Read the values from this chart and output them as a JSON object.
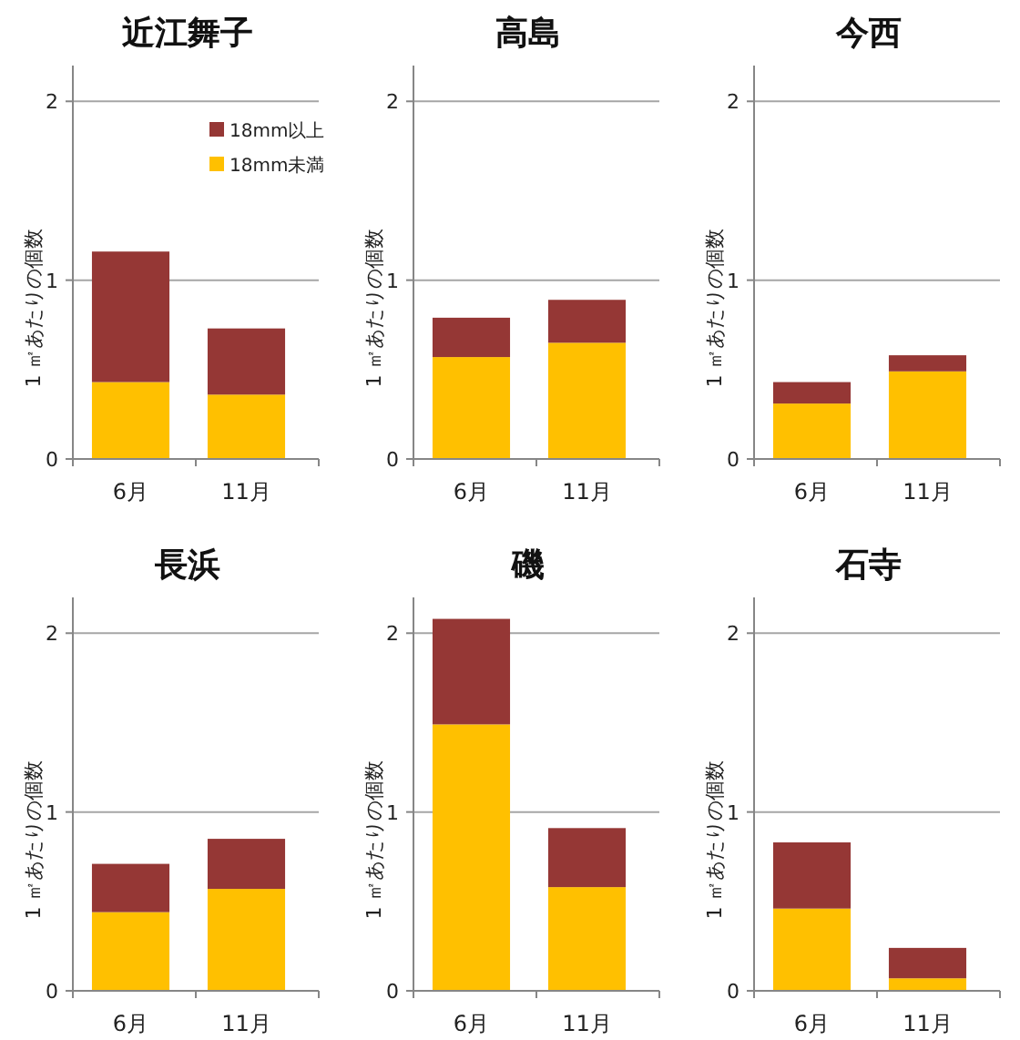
{
  "chart_data": [
    {
      "type": "bar",
      "title": "近江舞子",
      "ylabel": "1 ㎡あたりの個数",
      "categories": [
        "6月",
        "11月"
      ],
      "stacked": true,
      "ylim": [
        0,
        2.2
      ],
      "yticks": [
        0,
        1,
        2
      ],
      "grid": "y",
      "legend": "top right",
      "series": [
        {
          "name": "18mm未満",
          "color": "#ffc000",
          "values": [
            0.43,
            0.36
          ]
        },
        {
          "name": "18mm以上",
          "color": "#953735",
          "values": [
            0.73,
            0.37
          ]
        }
      ]
    },
    {
      "type": "bar",
      "title": "高島",
      "ylabel": "1 ㎡あたりの個数",
      "categories": [
        "6月",
        "11月"
      ],
      "stacked": true,
      "ylim": [
        0,
        2.2
      ],
      "yticks": [
        0,
        1,
        2
      ],
      "grid": "y",
      "series": [
        {
          "color": "#ffc000",
          "values": [
            0.57,
            0.65
          ]
        },
        {
          "color": "#953735",
          "values": [
            0.22,
            0.24
          ]
        }
      ]
    },
    {
      "type": "bar",
      "title": "今西",
      "ylabel": "1 ㎡あたりの個数",
      "categories": [
        "6月",
        "11月"
      ],
      "stacked": true,
      "ylim": [
        0,
        2.2
      ],
      "yticks": [
        0,
        1,
        2
      ],
      "grid": "y",
      "series": [
        {
          "color": "#ffc000",
          "values": [
            0.31,
            0.49
          ]
        },
        {
          "color": "#953735",
          "values": [
            0.12,
            0.09
          ]
        }
      ]
    },
    {
      "type": "bar",
      "title": "長浜",
      "ylabel": "1 ㎡あたりの個数",
      "categories": [
        "6月",
        "11月"
      ],
      "stacked": true,
      "ylim": [
        0,
        2.2
      ],
      "yticks": [
        0,
        1,
        2
      ],
      "grid": "y",
      "series": [
        {
          "color": "#ffc000",
          "values": [
            0.44,
            0.57
          ]
        },
        {
          "color": "#953735",
          "values": [
            0.27,
            0.28
          ]
        }
      ]
    },
    {
      "type": "bar",
      "title": "磯",
      "ylabel": "1 ㎡あたりの個数",
      "categories": [
        "6月",
        "11月"
      ],
      "stacked": true,
      "ylim": [
        0,
        2.2
      ],
      "yticks": [
        0,
        1,
        2
      ],
      "grid": "y",
      "series": [
        {
          "color": "#ffc000",
          "values": [
            1.49,
            0.58
          ]
        },
        {
          "color": "#953735",
          "values": [
            0.59,
            0.33
          ]
        }
      ]
    },
    {
      "type": "bar",
      "title": "石寺",
      "ylabel": "1 ㎡あたりの個数",
      "categories": [
        "6月",
        "11月"
      ],
      "stacked": true,
      "ylim": [
        0,
        2.2
      ],
      "yticks": [
        0,
        1,
        2
      ],
      "grid": "y",
      "series": [
        {
          "color": "#ffc000",
          "values": [
            0.46,
            0.07
          ]
        },
        {
          "color": "#953735",
          "values": [
            0.37,
            0.17
          ]
        }
      ]
    }
  ]
}
